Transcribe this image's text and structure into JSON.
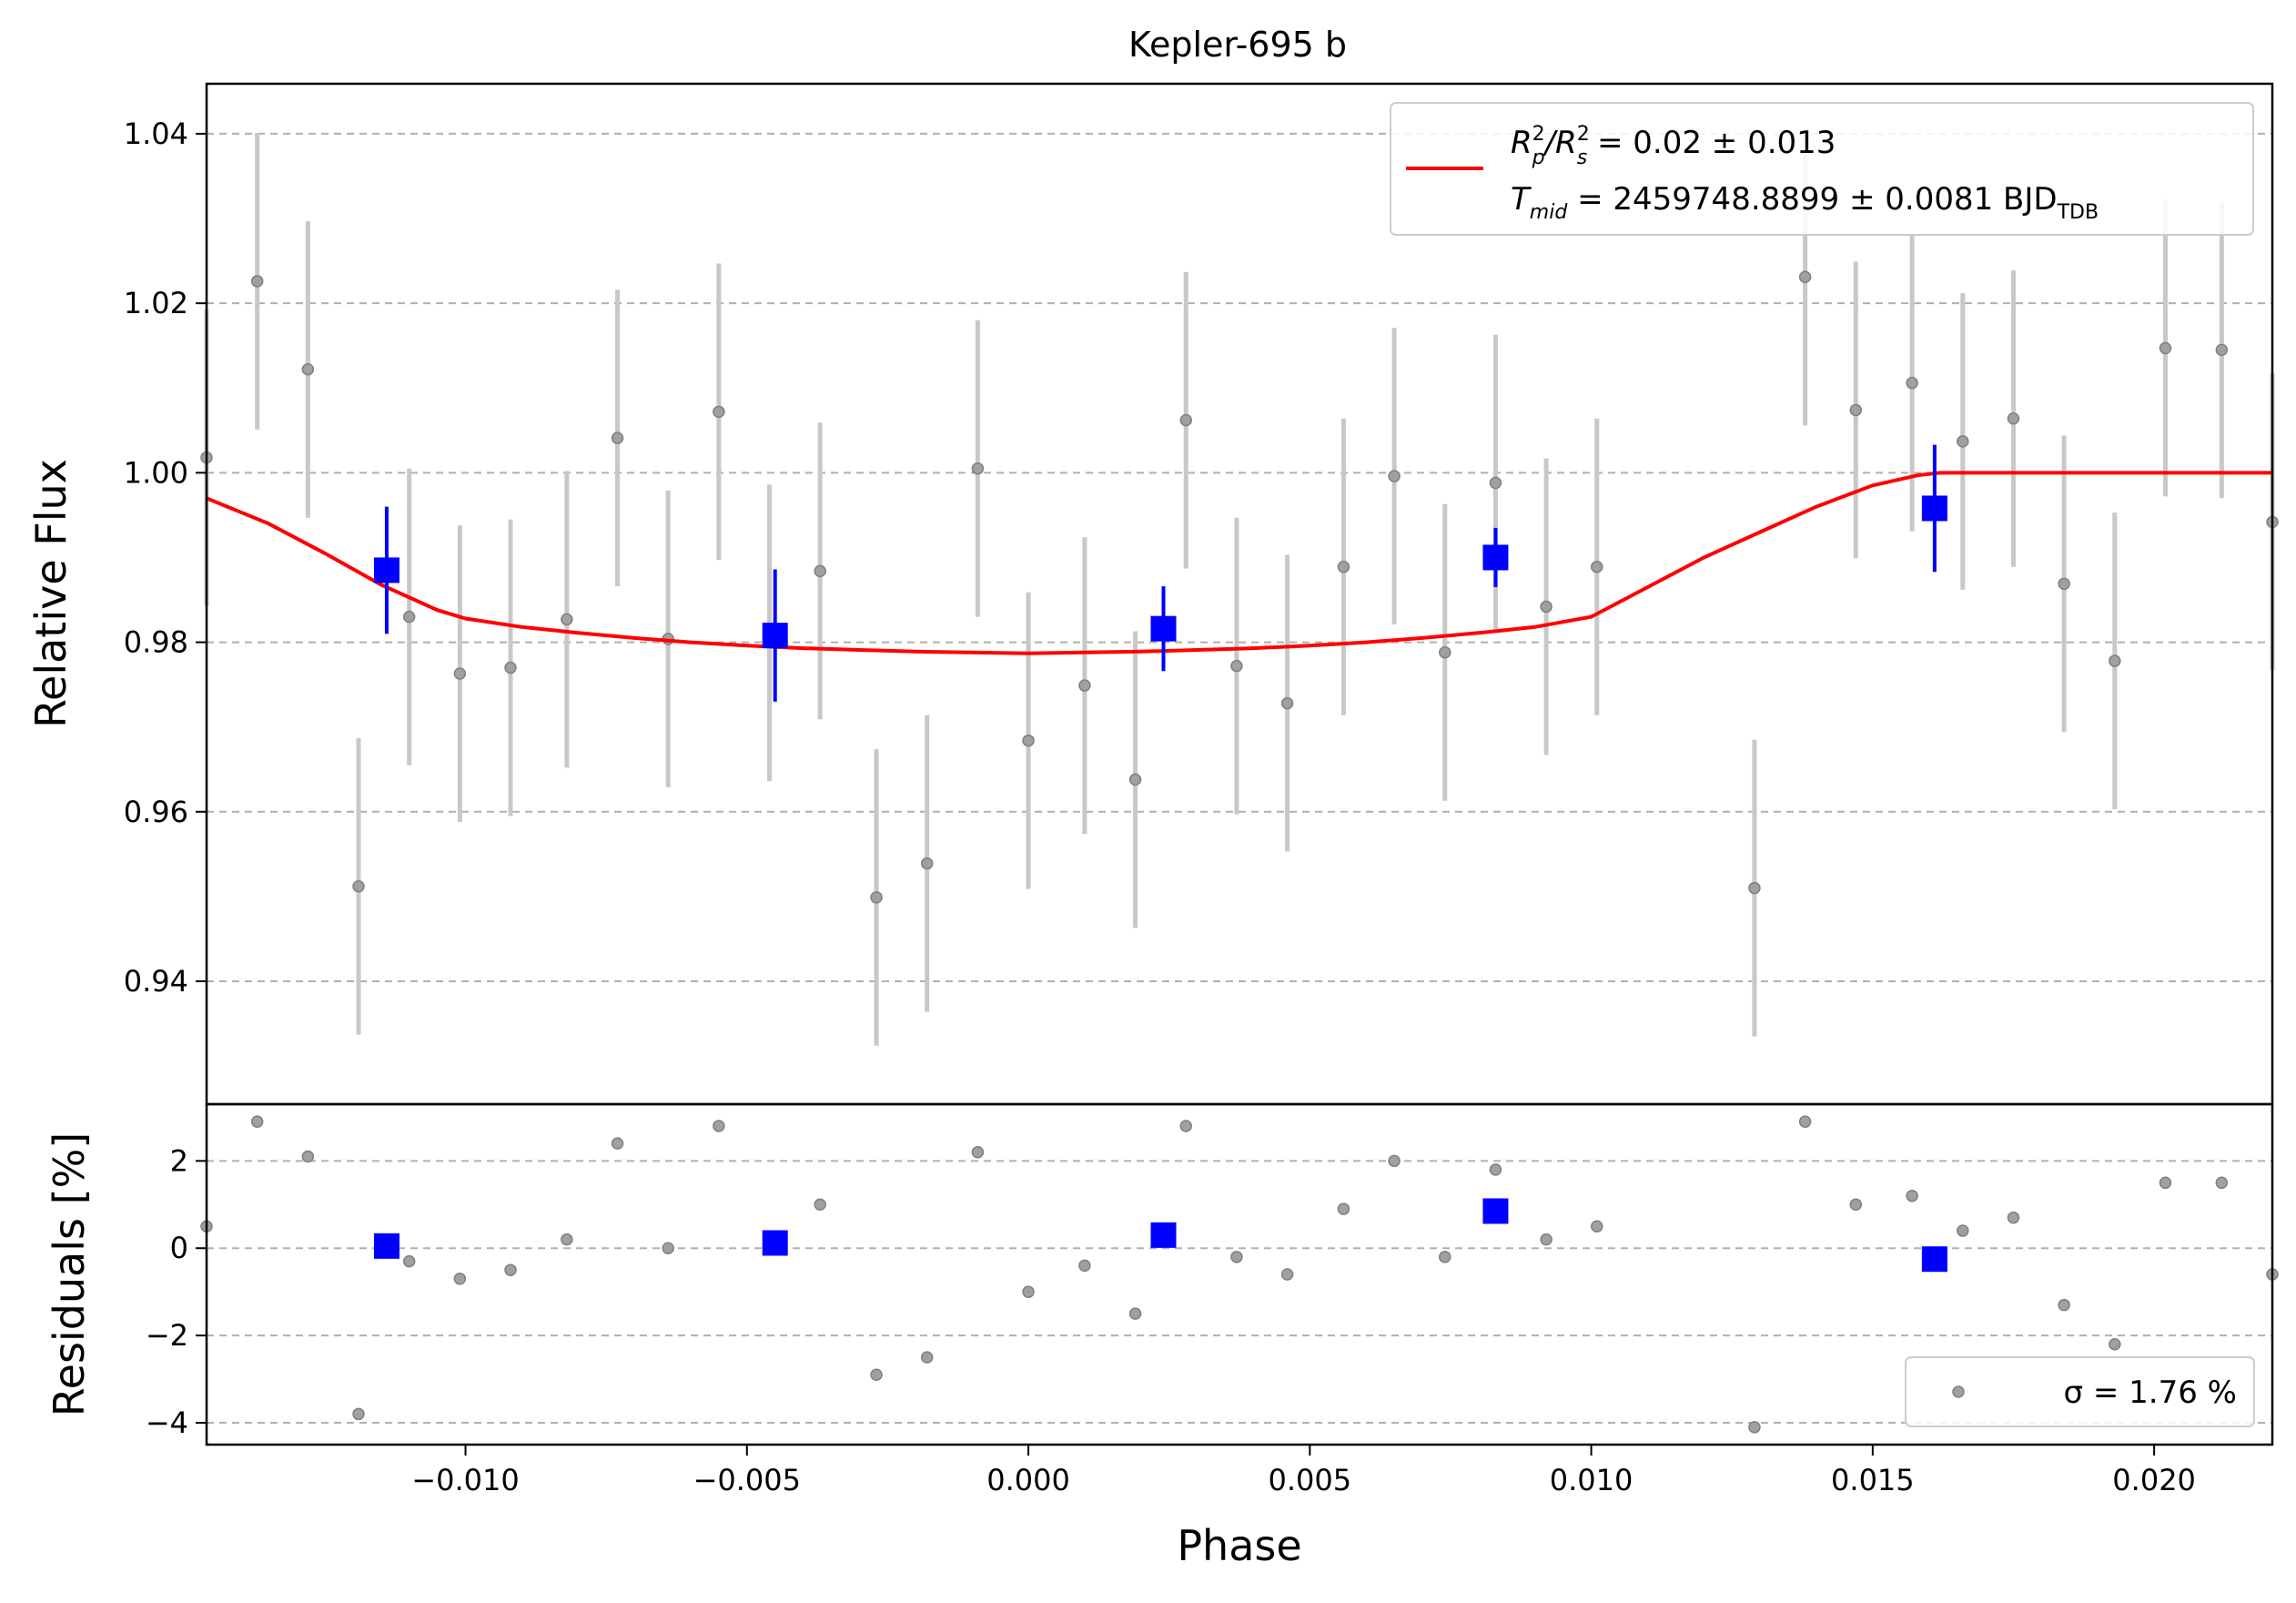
{
  "chart_data": [
    {
      "type": "scatter",
      "panel": "main",
      "title": "Kepler-695 b",
      "xlabel": "",
      "ylabel": "Relative Flux",
      "xlim": [
        -0.0146,
        0.0221
      ],
      "ylim": [
        0.9255,
        1.0459
      ],
      "grid": "y-dashed",
      "yticks": [
        "0.94",
        "0.96",
        "0.98",
        "1.00",
        "1.02",
        "1.04"
      ],
      "legend": {
        "position": "top-right",
        "line1": {
          "pre": "R",
          "sub1": "p",
          "sup1": "2",
          "mid": "/R",
          "sub2": "s",
          "sup2": "2",
          "post": " = 0.02 ± 0.013"
        },
        "line2": {
          "pre": "T",
          "sub1": "mid",
          "post": " = 2459748.8899 ± 0.0081 BJD",
          "sub2": "TDB"
        }
      },
      "colors": {
        "data": "#808080",
        "errorbar": "#c8c8c8",
        "binned": "#0000ff",
        "model": "#ff0000",
        "grid": "#b0b0b0"
      },
      "series": [
        {
          "name": "data",
          "marker": "circle",
          "x": [
            -0.0146,
            -0.0137,
            -0.0128,
            -0.0119,
            -0.011,
            -0.0101,
            -0.0092,
            -0.0082,
            -0.0073,
            -0.0064,
            -0.0055,
            -0.0046,
            -0.0037,
            -0.0027,
            -0.0018,
            -0.0009,
            0.0,
            0.001,
            0.0019,
            0.0028,
            0.0037,
            0.0046,
            0.0056,
            0.0065,
            0.0074,
            0.0083,
            0.0092,
            0.0101,
            0.0129,
            0.0138,
            0.0147,
            0.0157,
            0.0166,
            0.0175,
            0.0184,
            0.0193,
            0.0202,
            0.0212,
            0.0221
          ],
          "y": [
            1.0018,
            1.0226,
            1.0122,
            0.9512,
            0.983,
            0.9763,
            0.977,
            0.9827,
            1.0041,
            0.9804,
            1.0072,
            0.9811,
            0.9884,
            0.9499,
            0.9539,
            1.0005,
            0.9684,
            0.9749,
            0.9638,
            1.0062,
            0.9772,
            0.9728,
            0.9889,
            0.9996,
            0.9788,
            0.9988,
            0.9842,
            0.9889,
            0.951,
            1.0231,
            1.0074,
            1.0106,
            1.0037,
            1.0064,
            0.9869,
            0.9778,
            1.0147,
            1.0145,
            0.9942
          ],
          "err": [
            0.0175,
            0.0175,
            0.0175,
            0.0175,
            0.0175,
            0.0175,
            0.0175,
            0.0175,
            0.0175,
            0.0175,
            0.0175,
            0.0175,
            0.0175,
            0.0175,
            0.0175,
            0.0175,
            0.0175,
            0.0175,
            0.0175,
            0.0175,
            0.0175,
            0.0175,
            0.0175,
            0.0175,
            0.0175,
            0.0175,
            0.0175,
            0.0175,
            0.0175,
            0.0175,
            0.0175,
            0.0175,
            0.0175,
            0.0175,
            0.0175,
            0.0175,
            0.0175,
            0.0175,
            0.0175
          ]
        },
        {
          "name": "binned",
          "marker": "square",
          "x": [
            -0.0114,
            -0.0045,
            0.0024,
            0.0083,
            0.0161
          ],
          "y": [
            0.9885,
            0.9808,
            0.9816,
            0.99,
            0.9958
          ],
          "err": [
            0.0075,
            0.0078,
            0.005,
            0.0035,
            0.0075
          ]
        },
        {
          "name": "model",
          "marker": "line",
          "x": [
            -0.0146,
            -0.0135,
            -0.0125,
            -0.0115,
            -0.0105,
            -0.01,
            -0.009,
            -0.008,
            -0.007,
            -0.006,
            -0.005,
            -0.004,
            -0.003,
            -0.002,
            -0.001,
            0.0,
            0.001,
            0.002,
            0.003,
            0.004,
            0.005,
            0.006,
            0.007,
            0.008,
            0.009,
            0.01,
            0.011,
            0.012,
            0.013,
            0.014,
            0.015,
            0.0158,
            0.0162,
            0.0221
          ],
          "y": [
            0.997,
            0.994,
            0.9905,
            0.9868,
            0.9838,
            0.9828,
            0.9818,
            0.9811,
            0.9805,
            0.98,
            0.9796,
            0.9793,
            0.9791,
            0.9789,
            0.9788,
            0.9787,
            0.9788,
            0.9789,
            0.9791,
            0.9793,
            0.9796,
            0.98,
            0.9805,
            0.9811,
            0.9818,
            0.983,
            0.9865,
            0.99,
            0.993,
            0.996,
            0.9985,
            0.9997,
            1.0,
            1.0
          ]
        }
      ]
    },
    {
      "type": "scatter",
      "panel": "residuals",
      "xlabel": "Phase",
      "ylabel": "Residuals [%]",
      "xlim": [
        -0.0146,
        0.0221
      ],
      "ylim": [
        -4.5,
        3.3
      ],
      "grid": "y-dashed",
      "xticks": [
        "−0.010",
        "−0.005",
        "0.000",
        "0.005",
        "0.010",
        "0.015",
        "0.020"
      ],
      "xtick_values": [
        -0.01,
        -0.005,
        0.0,
        0.005,
        0.01,
        0.015,
        0.02
      ],
      "yticks": [
        "−4",
        "−2",
        "0",
        "2"
      ],
      "ytick_values": [
        -4,
        -2,
        0,
        2
      ],
      "legend": {
        "position": "bottom-right",
        "label": "σ = 1.76 %"
      },
      "series": [
        {
          "name": "data",
          "marker": "circle",
          "x": [
            -0.0146,
            -0.0137,
            -0.0128,
            -0.0119,
            -0.011,
            -0.0101,
            -0.0092,
            -0.0082,
            -0.0073,
            -0.0064,
            -0.0055,
            -0.0046,
            -0.0037,
            -0.0027,
            -0.0018,
            -0.0009,
            0.0,
            0.001,
            0.0019,
            0.0028,
            0.0037,
            0.0046,
            0.0056,
            0.0065,
            0.0074,
            0.0083,
            0.0092,
            0.0101,
            0.0129,
            0.0138,
            0.0147,
            0.0157,
            0.0166,
            0.0175,
            0.0184,
            0.0193,
            0.0202,
            0.0212,
            0.0221
          ],
          "y": [
            0.5,
            2.9,
            2.1,
            -3.8,
            -0.3,
            -0.7,
            -0.5,
            0.2,
            2.4,
            0.0,
            2.8,
            0.1,
            1.0,
            -2.9,
            -2.5,
            2.2,
            -1.0,
            -0.4,
            -1.5,
            2.8,
            -0.2,
            -0.6,
            0.9,
            2.0,
            -0.2,
            1.8,
            0.2,
            0.5,
            -4.1,
            2.9,
            1.0,
            1.2,
            0.4,
            0.7,
            -1.3,
            -2.2,
            1.5,
            1.5,
            -0.6
          ]
        },
        {
          "name": "binned",
          "marker": "square",
          "x": [
            -0.0114,
            -0.0045,
            0.0024,
            0.0083,
            0.0161
          ],
          "y": [
            0.05,
            0.12,
            0.3,
            0.85,
            -0.25
          ]
        }
      ]
    }
  ]
}
